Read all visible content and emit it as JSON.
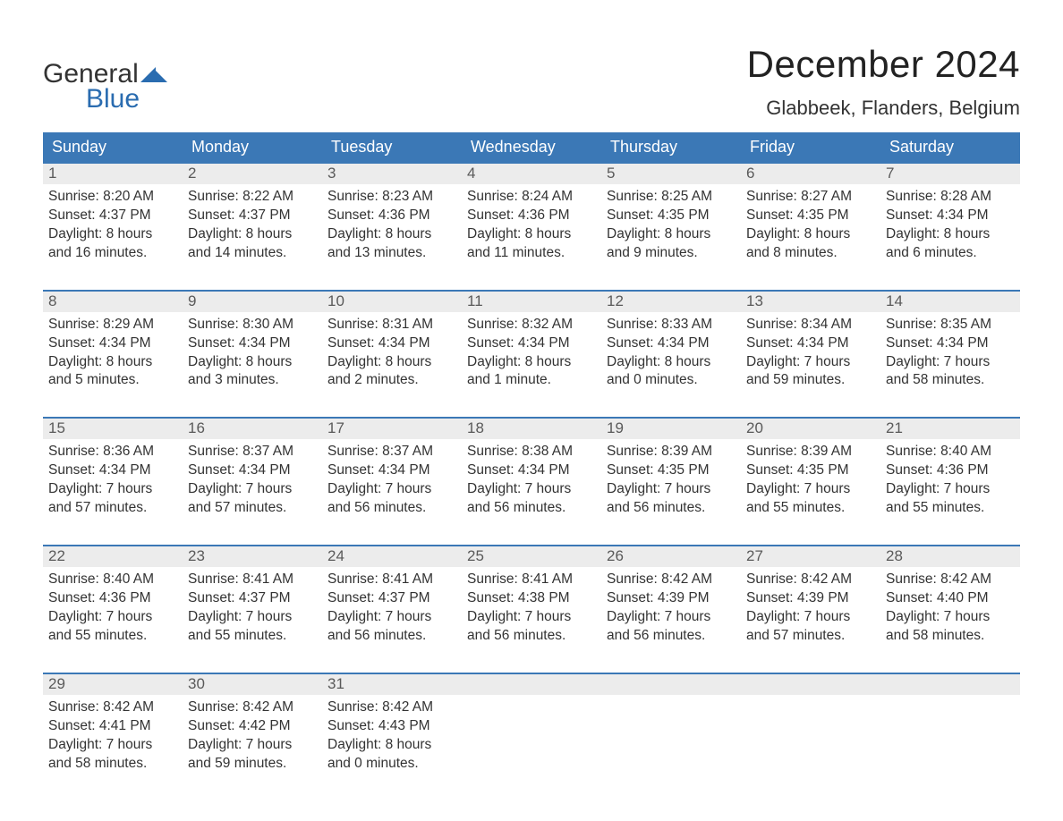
{
  "brand": {
    "text_general": "General",
    "text_blue": "Blue",
    "tri_color": "#2a6cb0",
    "text_dark": "#333333"
  },
  "header": {
    "month_title": "December 2024",
    "location": "Glabbeek, Flanders, Belgium"
  },
  "colors": {
    "header_bg": "#3b78b6",
    "header_text": "#ffffff",
    "daynum_bg": "#ececec",
    "daynum_text": "#5a5a5a",
    "body_text": "#333333",
    "row_border": "#3b78b6",
    "background": "#ffffff"
  },
  "typography": {
    "title_fontsize": 42,
    "location_fontsize": 22,
    "weekday_fontsize": 18,
    "daynum_fontsize": 17,
    "body_fontsize": 15.5
  },
  "weekdays": [
    "Sunday",
    "Monday",
    "Tuesday",
    "Wednesday",
    "Thursday",
    "Friday",
    "Saturday"
  ],
  "labels": {
    "sunrise_prefix": "Sunrise: ",
    "sunset_prefix": "Sunset: ",
    "daylight_prefix": "Daylight: "
  },
  "weeks": [
    [
      {
        "day": "1",
        "sunrise": "8:20 AM",
        "sunset": "4:37 PM",
        "daylight1": "8 hours",
        "daylight2": "and 16 minutes."
      },
      {
        "day": "2",
        "sunrise": "8:22 AM",
        "sunset": "4:37 PM",
        "daylight1": "8 hours",
        "daylight2": "and 14 minutes."
      },
      {
        "day": "3",
        "sunrise": "8:23 AM",
        "sunset": "4:36 PM",
        "daylight1": "8 hours",
        "daylight2": "and 13 minutes."
      },
      {
        "day": "4",
        "sunrise": "8:24 AM",
        "sunset": "4:36 PM",
        "daylight1": "8 hours",
        "daylight2": "and 11 minutes."
      },
      {
        "day": "5",
        "sunrise": "8:25 AM",
        "sunset": "4:35 PM",
        "daylight1": "8 hours",
        "daylight2": "and 9 minutes."
      },
      {
        "day": "6",
        "sunrise": "8:27 AM",
        "sunset": "4:35 PM",
        "daylight1": "8 hours",
        "daylight2": "and 8 minutes."
      },
      {
        "day": "7",
        "sunrise": "8:28 AM",
        "sunset": "4:34 PM",
        "daylight1": "8 hours",
        "daylight2": "and 6 minutes."
      }
    ],
    [
      {
        "day": "8",
        "sunrise": "8:29 AM",
        "sunset": "4:34 PM",
        "daylight1": "8 hours",
        "daylight2": "and 5 minutes."
      },
      {
        "day": "9",
        "sunrise": "8:30 AM",
        "sunset": "4:34 PM",
        "daylight1": "8 hours",
        "daylight2": "and 3 minutes."
      },
      {
        "day": "10",
        "sunrise": "8:31 AM",
        "sunset": "4:34 PM",
        "daylight1": "8 hours",
        "daylight2": "and 2 minutes."
      },
      {
        "day": "11",
        "sunrise": "8:32 AM",
        "sunset": "4:34 PM",
        "daylight1": "8 hours",
        "daylight2": "and 1 minute."
      },
      {
        "day": "12",
        "sunrise": "8:33 AM",
        "sunset": "4:34 PM",
        "daylight1": "8 hours",
        "daylight2": "and 0 minutes."
      },
      {
        "day": "13",
        "sunrise": "8:34 AM",
        "sunset": "4:34 PM",
        "daylight1": "7 hours",
        "daylight2": "and 59 minutes."
      },
      {
        "day": "14",
        "sunrise": "8:35 AM",
        "sunset": "4:34 PM",
        "daylight1": "7 hours",
        "daylight2": "and 58 minutes."
      }
    ],
    [
      {
        "day": "15",
        "sunrise": "8:36 AM",
        "sunset": "4:34 PM",
        "daylight1": "7 hours",
        "daylight2": "and 57 minutes."
      },
      {
        "day": "16",
        "sunrise": "8:37 AM",
        "sunset": "4:34 PM",
        "daylight1": "7 hours",
        "daylight2": "and 57 minutes."
      },
      {
        "day": "17",
        "sunrise": "8:37 AM",
        "sunset": "4:34 PM",
        "daylight1": "7 hours",
        "daylight2": "and 56 minutes."
      },
      {
        "day": "18",
        "sunrise": "8:38 AM",
        "sunset": "4:34 PM",
        "daylight1": "7 hours",
        "daylight2": "and 56 minutes."
      },
      {
        "day": "19",
        "sunrise": "8:39 AM",
        "sunset": "4:35 PM",
        "daylight1": "7 hours",
        "daylight2": "and 56 minutes."
      },
      {
        "day": "20",
        "sunrise": "8:39 AM",
        "sunset": "4:35 PM",
        "daylight1": "7 hours",
        "daylight2": "and 55 minutes."
      },
      {
        "day": "21",
        "sunrise": "8:40 AM",
        "sunset": "4:36 PM",
        "daylight1": "7 hours",
        "daylight2": "and 55 minutes."
      }
    ],
    [
      {
        "day": "22",
        "sunrise": "8:40 AM",
        "sunset": "4:36 PM",
        "daylight1": "7 hours",
        "daylight2": "and 55 minutes."
      },
      {
        "day": "23",
        "sunrise": "8:41 AM",
        "sunset": "4:37 PM",
        "daylight1": "7 hours",
        "daylight2": "and 55 minutes."
      },
      {
        "day": "24",
        "sunrise": "8:41 AM",
        "sunset": "4:37 PM",
        "daylight1": "7 hours",
        "daylight2": "and 56 minutes."
      },
      {
        "day": "25",
        "sunrise": "8:41 AM",
        "sunset": "4:38 PM",
        "daylight1": "7 hours",
        "daylight2": "and 56 minutes."
      },
      {
        "day": "26",
        "sunrise": "8:42 AM",
        "sunset": "4:39 PM",
        "daylight1": "7 hours",
        "daylight2": "and 56 minutes."
      },
      {
        "day": "27",
        "sunrise": "8:42 AM",
        "sunset": "4:39 PM",
        "daylight1": "7 hours",
        "daylight2": "and 57 minutes."
      },
      {
        "day": "28",
        "sunrise": "8:42 AM",
        "sunset": "4:40 PM",
        "daylight1": "7 hours",
        "daylight2": "and 58 minutes."
      }
    ],
    [
      {
        "day": "29",
        "sunrise": "8:42 AM",
        "sunset": "4:41 PM",
        "daylight1": "7 hours",
        "daylight2": "and 58 minutes."
      },
      {
        "day": "30",
        "sunrise": "8:42 AM",
        "sunset": "4:42 PM",
        "daylight1": "7 hours",
        "daylight2": "and 59 minutes."
      },
      {
        "day": "31",
        "sunrise": "8:42 AM",
        "sunset": "4:43 PM",
        "daylight1": "8 hours",
        "daylight2": "and 0 minutes."
      },
      null,
      null,
      null,
      null
    ]
  ]
}
